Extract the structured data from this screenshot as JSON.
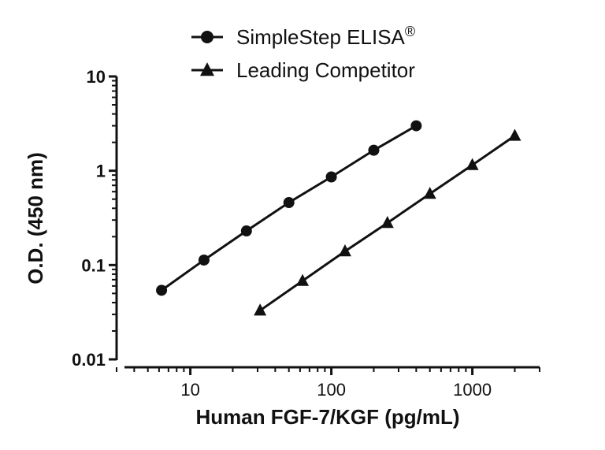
{
  "chart_data": {
    "type": "line",
    "xlabel": "Human FGF-7/KGF (pg/mL)",
    "ylabel": "O.D. (450 nm)",
    "xscale": "log",
    "yscale": "log",
    "xlim": [
      3,
      3000
    ],
    "ylim": [
      0.01,
      10
    ],
    "xticks": [
      "10",
      "100",
      "1000"
    ],
    "yticks": [
      "0.01",
      "0.1",
      "1",
      "10"
    ],
    "legend_position": "top-center",
    "series": [
      {
        "name": "SimpleStep ELISA®",
        "marker": "circle",
        "x": [
          6.25,
          12.5,
          25,
          50,
          100,
          200,
          400
        ],
        "y": [
          0.054,
          0.113,
          0.23,
          0.46,
          0.86,
          1.65,
          3.0
        ]
      },
      {
        "name": "Leading Competitor",
        "marker": "triangle",
        "x": [
          31.25,
          62.5,
          125,
          250,
          500,
          1000,
          2000
        ],
        "y": [
          0.033,
          0.068,
          0.14,
          0.28,
          0.57,
          1.15,
          2.35
        ]
      }
    ]
  }
}
